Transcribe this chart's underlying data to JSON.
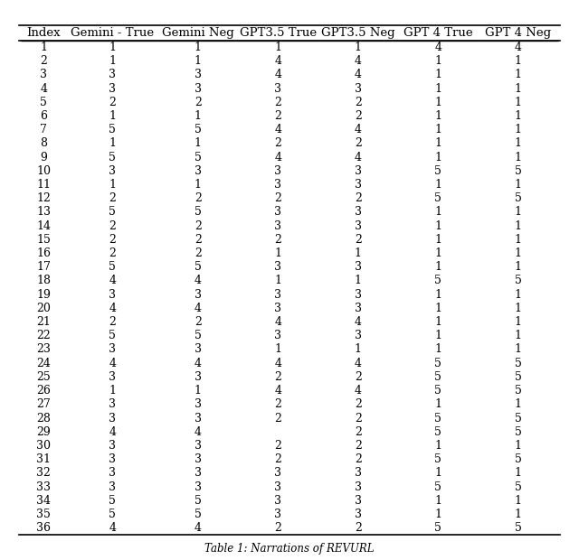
{
  "columns": [
    "Index",
    "Gemini - True",
    "Gemini Neg",
    "GPT3.5 True",
    "GPT3.5 Neg",
    "GPT 4 True",
    "GPT 4 Neg"
  ],
  "rows": [
    [
      1,
      1,
      1,
      1,
      1,
      4,
      4
    ],
    [
      2,
      1,
      1,
      4,
      4,
      1,
      1
    ],
    [
      3,
      3,
      3,
      4,
      4,
      1,
      1
    ],
    [
      4,
      3,
      3,
      3,
      3,
      1,
      1
    ],
    [
      5,
      2,
      2,
      2,
      2,
      1,
      1
    ],
    [
      6,
      1,
      1,
      2,
      2,
      1,
      1
    ],
    [
      7,
      5,
      5,
      4,
      4,
      1,
      1
    ],
    [
      8,
      1,
      1,
      2,
      2,
      1,
      1
    ],
    [
      9,
      5,
      5,
      4,
      4,
      1,
      1
    ],
    [
      10,
      3,
      3,
      3,
      3,
      5,
      5
    ],
    [
      11,
      1,
      1,
      3,
      3,
      1,
      1
    ],
    [
      12,
      2,
      2,
      2,
      2,
      5,
      5
    ],
    [
      13,
      5,
      5,
      3,
      3,
      1,
      1
    ],
    [
      14,
      2,
      2,
      3,
      3,
      1,
      1
    ],
    [
      15,
      2,
      2,
      2,
      2,
      1,
      1
    ],
    [
      16,
      2,
      2,
      1,
      1,
      1,
      1
    ],
    [
      17,
      5,
      5,
      3,
      3,
      1,
      1
    ],
    [
      18,
      4,
      4,
      1,
      1,
      5,
      5
    ],
    [
      19,
      3,
      3,
      3,
      3,
      1,
      1
    ],
    [
      20,
      4,
      4,
      3,
      3,
      1,
      1
    ],
    [
      21,
      2,
      2,
      4,
      4,
      1,
      1
    ],
    [
      22,
      5,
      5,
      3,
      3,
      1,
      1
    ],
    [
      23,
      3,
      3,
      1,
      1,
      1,
      1
    ],
    [
      24,
      4,
      4,
      4,
      4,
      5,
      5
    ],
    [
      25,
      3,
      3,
      2,
      2,
      5,
      5
    ],
    [
      26,
      1,
      1,
      4,
      4,
      5,
      5
    ],
    [
      27,
      3,
      3,
      2,
      2,
      1,
      1
    ],
    [
      28,
      3,
      3,
      2,
      2,
      5,
      5
    ],
    [
      29,
      4,
      4,
      "",
      2,
      5,
      5
    ],
    [
      30,
      3,
      3,
      2,
      2,
      1,
      1
    ],
    [
      31,
      3,
      3,
      2,
      2,
      5,
      5
    ],
    [
      32,
      3,
      3,
      3,
      3,
      1,
      1
    ],
    [
      33,
      3,
      3,
      3,
      3,
      5,
      5
    ],
    [
      34,
      5,
      5,
      3,
      3,
      1,
      1
    ],
    [
      35,
      5,
      5,
      3,
      3,
      1,
      1
    ],
    [
      36,
      4,
      4,
      2,
      2,
      5,
      5
    ]
  ],
  "caption": "Table 1: Narrations of REVURL",
  "background_color": "#ffffff",
  "header_fontsize": 9.5,
  "cell_fontsize": 9.0,
  "caption_fontsize": 8.5,
  "font_family": "serif"
}
